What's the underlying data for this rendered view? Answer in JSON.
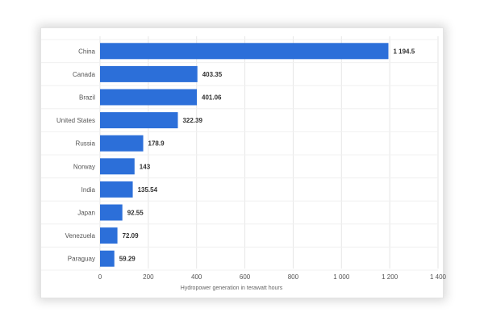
{
  "chart_data": {
    "type": "bar",
    "orientation": "horizontal",
    "categories": [
      "China",
      "Canada",
      "Brazil",
      "United States",
      "Russia",
      "Norway",
      "India",
      "Japan",
      "Venezuela",
      "Paraguay"
    ],
    "values": [
      1194.5,
      403.35,
      401.06,
      322.39,
      178.9,
      143,
      135.54,
      92.55,
      72.09,
      59.29
    ],
    "value_labels": [
      "1 194.5",
      "403.35",
      "401.06",
      "322.39",
      "178.9",
      "143",
      "135.54",
      "92.55",
      "72.09",
      "59.29"
    ],
    "xlabel": "Hydropower generation in terawatt hours",
    "xlim": [
      0,
      1400
    ],
    "xticks": [
      0,
      200,
      400,
      600,
      800,
      1000,
      1200,
      1400
    ],
    "xtick_labels": [
      "0",
      "200",
      "400",
      "600",
      "800",
      "1 000",
      "1 200",
      "1 400"
    ],
    "grid": true,
    "colors": {
      "bar": "#2c6fd9",
      "grid": "#e6e6e6"
    }
  }
}
